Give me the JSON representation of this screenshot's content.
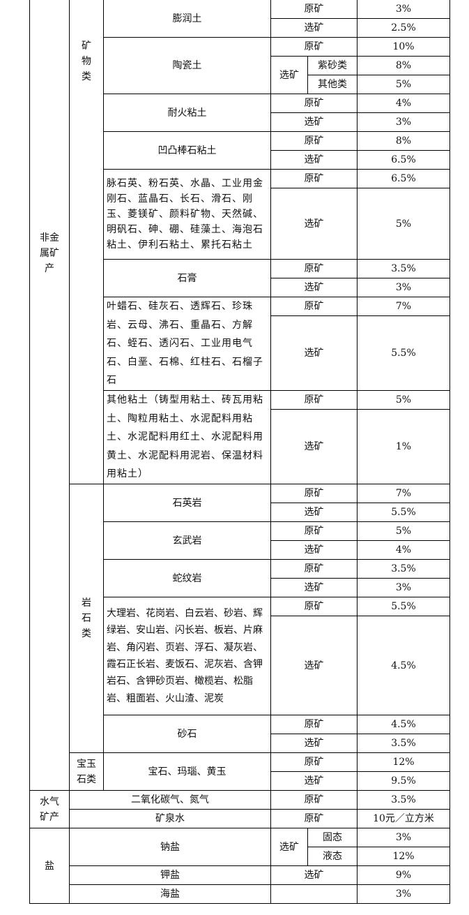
{
  "c": {
    "nonmetal": "非金属矿产",
    "mineral_group": "矿物类",
    "rock_group": "岩石类",
    "gem_group": "宝玉石类",
    "water_gas": "水气矿产",
    "salt": "盐",
    "raw": "原矿",
    "dressed": "选矿"
  },
  "rows": {
    "bentonite": {
      "name": "膨润土",
      "raw": "3%",
      "dressed": "2.5%"
    },
    "ceramic": {
      "name": "陶瓷土",
      "raw": "10%",
      "sub1": "紫砂类",
      "sub1_rate": "8%",
      "sub2": "其他类",
      "sub2_rate": "5%"
    },
    "fireclay": {
      "name": "耐火粘土",
      "raw": "4%",
      "dressed": "3%"
    },
    "attapulgite": {
      "name": "凹凸棒石粘土",
      "raw": "8%",
      "dressed": "6.5%"
    },
    "quartz": {
      "name": "脉石英、粉石英、水晶、工业用金刚石、蓝晶石、长石、滑石、刚玉、菱镁矿、颜料矿物、天然碱、明矾石、砷、硼、硅藻土、海泡石粘土、伊利石粘土、累托石粘土",
      "raw": "6.5%",
      "dressed": "5%"
    },
    "gypsum": {
      "name": "石膏",
      "raw": "3.5%",
      "dressed": "3%"
    },
    "pyrophyllite": {
      "name": "叶蜡石、硅灰石、透辉石、珍珠岩、云母、沸石、重晶石、方解石、蛭石、透闪石、工业用电气石、白垩、石棉、红柱石、石榴子石",
      "raw": "7%",
      "dressed": "5.5%"
    },
    "otherclay": {
      "name": "其他粘土（铸型用粘土、砖瓦用粘土、陶粒用粘土、水泥配料用粘土、水泥配料用红土、水泥配料用黄土、水泥配料用泥岩、保温材料用粘土）",
      "raw": "5%",
      "dressed": "1%"
    },
    "quartzite": {
      "name": "石英岩",
      "raw": "7%",
      "dressed": "5.5%"
    },
    "basalt": {
      "name": "玄武岩",
      "raw": "5%",
      "dressed": "4%"
    },
    "serpentinite": {
      "name": "蛇纹岩",
      "raw": "3.5%",
      "dressed": "3%"
    },
    "marble": {
      "name": "大理岩、花岗岩、白云岩、砂岩、辉绿岩、安山岩、闪长岩、板岩、片麻岩、角闪岩、页岩、浮石、凝灰岩、霞石正长岩、麦饭石、泥灰岩、含钾岩石、含钾砂页岩、橄榄岩、松脂岩、粗面岩、火山渣、泥炭",
      "raw": "5.5%",
      "dressed": "4.5%"
    },
    "sand": {
      "name": "砂石",
      "raw": "4.5%",
      "dressed": "3.5%"
    },
    "gem": {
      "name": "宝石、玛瑙、黄玉",
      "raw": "12%",
      "dressed": "9.5%"
    },
    "co2": {
      "name": "二氧化碳气、氮气",
      "raw": "3.5%"
    },
    "mineralwater": {
      "name": "矿泉水",
      "raw": "10元／立方米"
    },
    "sodium": {
      "name": "钠盐",
      "sub1": "固态",
      "sub1_rate": "3%",
      "sub2": "液态",
      "sub2_rate": "12%"
    },
    "potassium": {
      "name": "钾盐",
      "dressed": "9%"
    },
    "sea": {
      "name": "海盐",
      "rate": "3%"
    }
  }
}
